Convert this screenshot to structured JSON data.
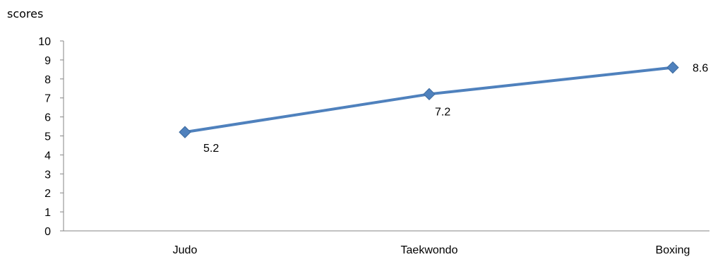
{
  "chart_data": {
    "type": "line",
    "title": "",
    "xlabel": "",
    "ylabel": "scores",
    "categories": [
      "Judo",
      "Taekwondo",
      "Boxing"
    ],
    "series": [
      {
        "values": [
          5.2,
          7.2,
          8.6
        ],
        "color": "#4F81BD",
        "marker": "diamond",
        "data_labels": [
          "5.2",
          "7.2",
          "8.6"
        ]
      }
    ],
    "ylim": [
      0,
      10
    ],
    "yticks": [
      0,
      1,
      2,
      3,
      4,
      5,
      6,
      7,
      8,
      9,
      10
    ],
    "grid": false,
    "legend": "none"
  }
}
